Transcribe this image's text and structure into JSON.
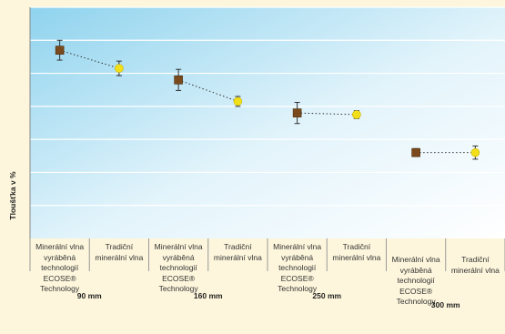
{
  "chart_data": {
    "type": "scatter",
    "ylabel": "Tloušťka v %",
    "groups": [
      "90 mm",
      "160 mm",
      "250 mm",
      "300 mm"
    ],
    "categories": [
      "Minerální vlna vyráběná technologií ECOSE® Technology",
      "Tradiční minerální vlna",
      "Minerální vlna vyráběná technologií ECOSE® Technology",
      "Tradiční minerální vlna",
      "Minerální vlna vyráběná technologií ECOSE® Technology",
      "Tradiční minerální vlna",
      "Minerální vlna vyráběná technologií ECOSE® Technology",
      "Tradiční minerální vlna"
    ],
    "series": [
      {
        "values": [
          4.7,
          4.15,
          3.8,
          3.15,
          2.8,
          2.75,
          1.6,
          1.6
        ],
        "errors": [
          0.3,
          0.22,
          0.32,
          0.15,
          0.32,
          0.12,
          0.12,
          0.2
        ]
      }
    ],
    "markers": [
      "square",
      "circle",
      "square",
      "circle",
      "square",
      "circle",
      "square",
      "circle"
    ],
    "ylim": [
      -1,
      6
    ],
    "grid": true,
    "colors": {
      "ecose": "#7a4a1c",
      "traditional": "#f2df1a",
      "connector": "#333333"
    }
  }
}
